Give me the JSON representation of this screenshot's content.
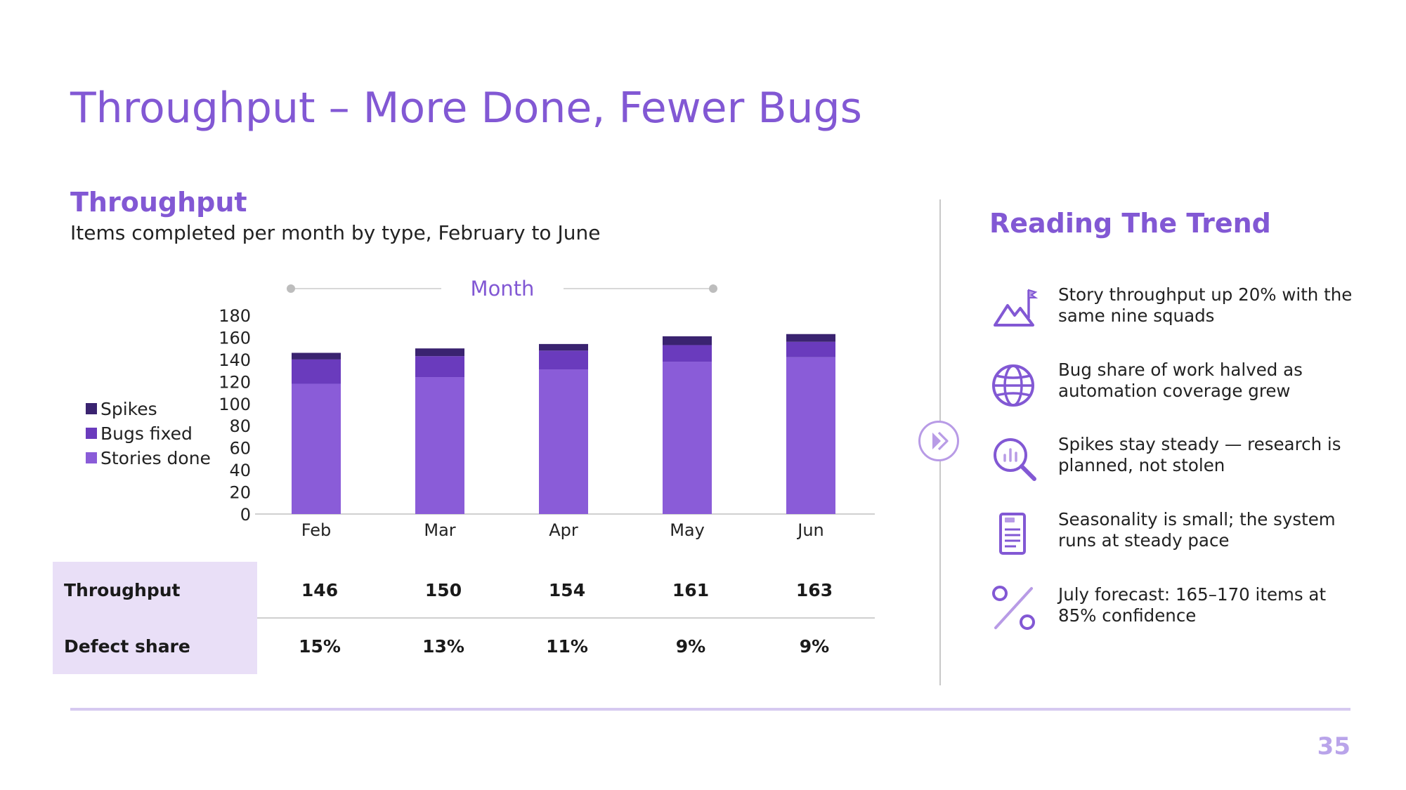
{
  "slide": {
    "title": "Throughput – More Done, Fewer Bugs",
    "page_number": "35"
  },
  "section": {
    "title": "Throughput",
    "subtitle": "Items completed per month by type, February to June"
  },
  "colors": {
    "accent": "#8258d4",
    "stories": "#8a5cd8",
    "bugs": "#6a3bbd",
    "spikes": "#3a2370",
    "table_header_bg": "#e9dff7"
  },
  "chart_data": {
    "type": "bar",
    "stacked": true,
    "title": "Month",
    "categories": [
      "Feb",
      "Mar",
      "Apr",
      "May",
      "Jun"
    ],
    "series": [
      {
        "name": "Stories done",
        "values": [
          118,
          124,
          131,
          138,
          142
        ]
      },
      {
        "name": "Bugs fixed",
        "values": [
          22,
          19,
          17,
          15,
          14
        ]
      },
      {
        "name": "Spikes",
        "values": [
          6,
          7,
          6,
          8,
          7
        ]
      }
    ],
    "yticks": [
      "0",
      "20",
      "40",
      "60",
      "80",
      "100",
      "120",
      "140",
      "160",
      "180"
    ],
    "ylim": [
      0,
      180
    ],
    "legend": "left",
    "grid": false
  },
  "table": {
    "rows": [
      {
        "label": "Throughput",
        "values": [
          "146",
          "150",
          "154",
          "161",
          "163"
        ]
      },
      {
        "label": "Defect share",
        "values": [
          "15%",
          "13%",
          "11%",
          "9%",
          "9%"
        ]
      }
    ]
  },
  "insights": {
    "title": "Reading The Trend",
    "items": [
      {
        "icon": "mountain-flag-icon",
        "text": "Story throughput up 20% with the same nine squads"
      },
      {
        "icon": "globe-icon",
        "text": "Bug share of work halved as automation coverage grew"
      },
      {
        "icon": "magnifier-chart-icon",
        "text": "Spikes stay steady — research is planned, not stolen"
      },
      {
        "icon": "document-list-icon",
        "text": "Seasonality is small; the system runs at steady pace"
      },
      {
        "icon": "percent-icon",
        "text": "July forecast: 165–170 items at 85% confidence"
      }
    ]
  }
}
